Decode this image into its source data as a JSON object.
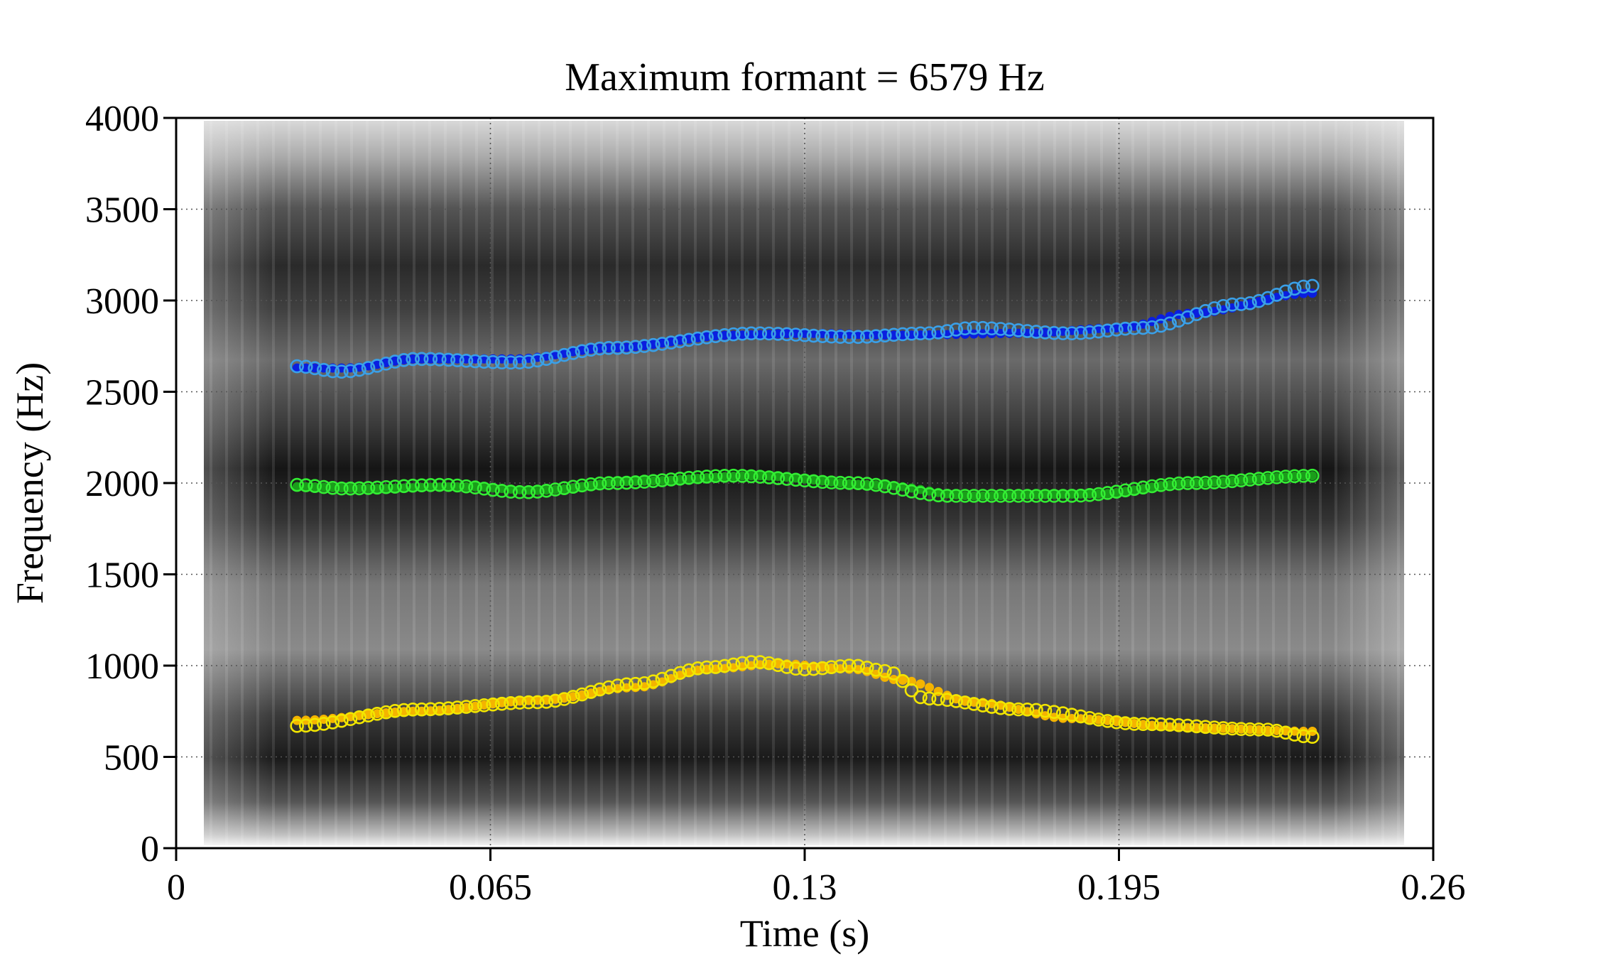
{
  "chart_data": {
    "type": "scatter",
    "title": "Maximum formant = 6579 Hz",
    "xlabel": "Time (s)",
    "ylabel": "Frequency (Hz)",
    "xlim": [
      0,
      0.26
    ],
    "ylim": [
      0,
      4000
    ],
    "x_ticks": [
      "0",
      "0.065",
      "0.13",
      "0.195",
      "0.26"
    ],
    "x_tick_values": [
      0,
      0.065,
      0.13,
      0.195,
      0.26
    ],
    "y_ticks": [
      "0",
      "500",
      "1000",
      "1500",
      "2000",
      "2500",
      "3000",
      "3500",
      "4000"
    ],
    "y_tick_values": [
      0,
      500,
      1000,
      1500,
      2000,
      2500,
      3000,
      3500,
      4000
    ],
    "grid": true,
    "background": "spectrogram (grayscale)",
    "time_range": [
      0.025,
      0.235
    ],
    "series": [
      {
        "marker": "filled",
        "color": "#f4b400",
        "points": [
          [
            0.025,
            700
          ],
          [
            0.05,
            750
          ],
          [
            0.075,
            810
          ],
          [
            0.095,
            880
          ],
          [
            0.11,
            980
          ],
          [
            0.125,
            1010
          ],
          [
            0.14,
            980
          ],
          [
            0.15,
            920
          ],
          [
            0.165,
            800
          ],
          [
            0.185,
            710
          ],
          [
            0.21,
            660
          ],
          [
            0.235,
            640
          ]
        ]
      },
      {
        "marker": "hollow",
        "color": "#f2e600",
        "points": [
          [
            0.025,
            670
          ],
          [
            0.05,
            760
          ],
          [
            0.075,
            800
          ],
          [
            0.095,
            900
          ],
          [
            0.11,
            990
          ],
          [
            0.12,
            1020
          ],
          [
            0.13,
            980
          ],
          [
            0.14,
            1000
          ],
          [
            0.147,
            970
          ],
          [
            0.155,
            820
          ],
          [
            0.175,
            760
          ],
          [
            0.2,
            680
          ],
          [
            0.225,
            650
          ],
          [
            0.235,
            610
          ]
        ]
      },
      {
        "marker": "filled",
        "color": "#1a9e1a",
        "points": [
          [
            0.025,
            1980
          ],
          [
            0.04,
            1970
          ],
          [
            0.06,
            1980
          ],
          [
            0.075,
            1960
          ],
          [
            0.095,
            2010
          ],
          [
            0.12,
            2040
          ],
          [
            0.145,
            1990
          ],
          [
            0.165,
            1930
          ],
          [
            0.19,
            1940
          ],
          [
            0.21,
            2000
          ],
          [
            0.235,
            2040
          ]
        ]
      },
      {
        "marker": "hollow",
        "color": "#33ee33",
        "points": [
          [
            0.025,
            1990
          ],
          [
            0.035,
            1970
          ],
          [
            0.055,
            1990
          ],
          [
            0.072,
            1950
          ],
          [
            0.09,
            2000
          ],
          [
            0.115,
            2040
          ],
          [
            0.14,
            2000
          ],
          [
            0.16,
            1930
          ],
          [
            0.185,
            1930
          ],
          [
            0.21,
            2000
          ],
          [
            0.235,
            2040
          ]
        ]
      },
      {
        "marker": "filled",
        "color": "#0a1ee0",
        "points": [
          [
            0.025,
            2630
          ],
          [
            0.035,
            2630
          ],
          [
            0.05,
            2680
          ],
          [
            0.07,
            2680
          ],
          [
            0.09,
            2740
          ],
          [
            0.115,
            2810
          ],
          [
            0.13,
            2820
          ],
          [
            0.15,
            2810
          ],
          [
            0.175,
            2820
          ],
          [
            0.195,
            2850
          ],
          [
            0.21,
            2930
          ],
          [
            0.235,
            3040
          ]
        ]
      },
      {
        "marker": "hollow",
        "color": "#3aa0e8",
        "points": [
          [
            0.025,
            2640
          ],
          [
            0.034,
            2610
          ],
          [
            0.05,
            2680
          ],
          [
            0.07,
            2660
          ],
          [
            0.09,
            2740
          ],
          [
            0.12,
            2820
          ],
          [
            0.14,
            2800
          ],
          [
            0.155,
            2820
          ],
          [
            0.165,
            2850
          ],
          [
            0.185,
            2820
          ],
          [
            0.2,
            2850
          ],
          [
            0.22,
            2980
          ],
          [
            0.235,
            3080
          ]
        ]
      }
    ]
  }
}
